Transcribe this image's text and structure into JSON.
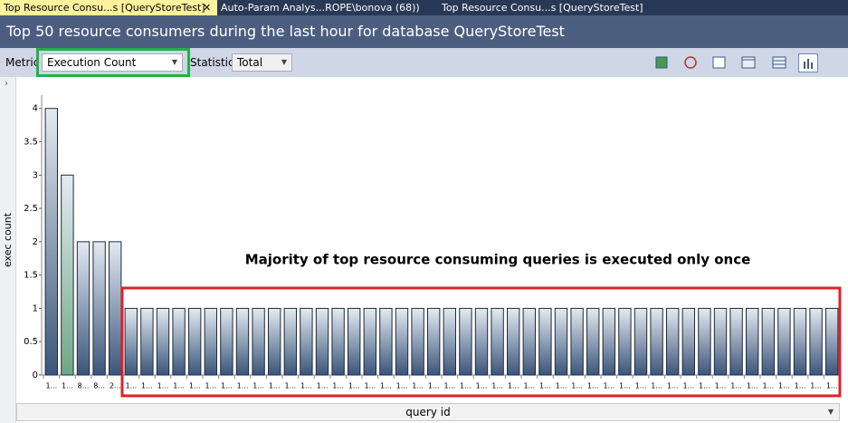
{
  "tabs": [
    "Top Resource Consu...s [QueryStoreTest]",
    "Auto-Param Analys...ROPE\\bonova (68))",
    "Top Resource Consu...s [QueryStoreTest]"
  ],
  "header": {
    "title": "Top 50 resource consumers during the last hour for database QueryStoreTest"
  },
  "toolbar": {
    "metric_label": "Metric",
    "metric": "Execution Count",
    "statistic_label": "Statistic",
    "statistic": "Total"
  },
  "chart_data": {
    "type": "bar",
    "y_label": "exec count",
    "x_label": "query id",
    "annotation": "Majority of top resource consuming queries is executed only once",
    "categories": [
      "1...",
      "1...",
      "8...",
      "8...",
      "2...",
      "1...",
      "1...",
      "1...",
      "1...",
      "1...",
      "1...",
      "1...",
      "1...",
      "1...",
      "1...",
      "1...",
      "1...",
      "1...",
      "1...",
      "1...",
      "1...",
      "1...",
      "1...",
      "1...",
      "1...",
      "1...",
      "1...",
      "1...",
      "1...",
      "1...",
      "1...",
      "1...",
      "1...",
      "1...",
      "1...",
      "1...",
      "1...",
      "1...",
      "1...",
      "1...",
      "1...",
      "1...",
      "1...",
      "1...",
      "1...",
      "1...",
      "1...",
      "1...",
      "1...",
      "1..."
    ],
    "values": [
      4,
      3,
      2,
      2,
      2,
      1,
      1,
      1,
      1,
      1,
      1,
      1,
      1,
      1,
      1,
      1,
      1,
      1,
      1,
      1,
      1,
      1,
      1,
      1,
      1,
      1,
      1,
      1,
      1,
      1,
      1,
      1,
      1,
      1,
      1,
      1,
      1,
      1,
      1,
      1,
      1,
      1,
      1,
      1,
      1,
      1,
      1,
      1,
      1,
      1
    ],
    "color": "#3b557a",
    "selected_color": "#6fa784",
    "selected": 1,
    "ylim": [
      0,
      4.2
    ],
    "yticks": [
      0,
      0.5,
      1,
      1.5,
      2,
      2.5,
      3,
      3.5,
      4
    ]
  }
}
